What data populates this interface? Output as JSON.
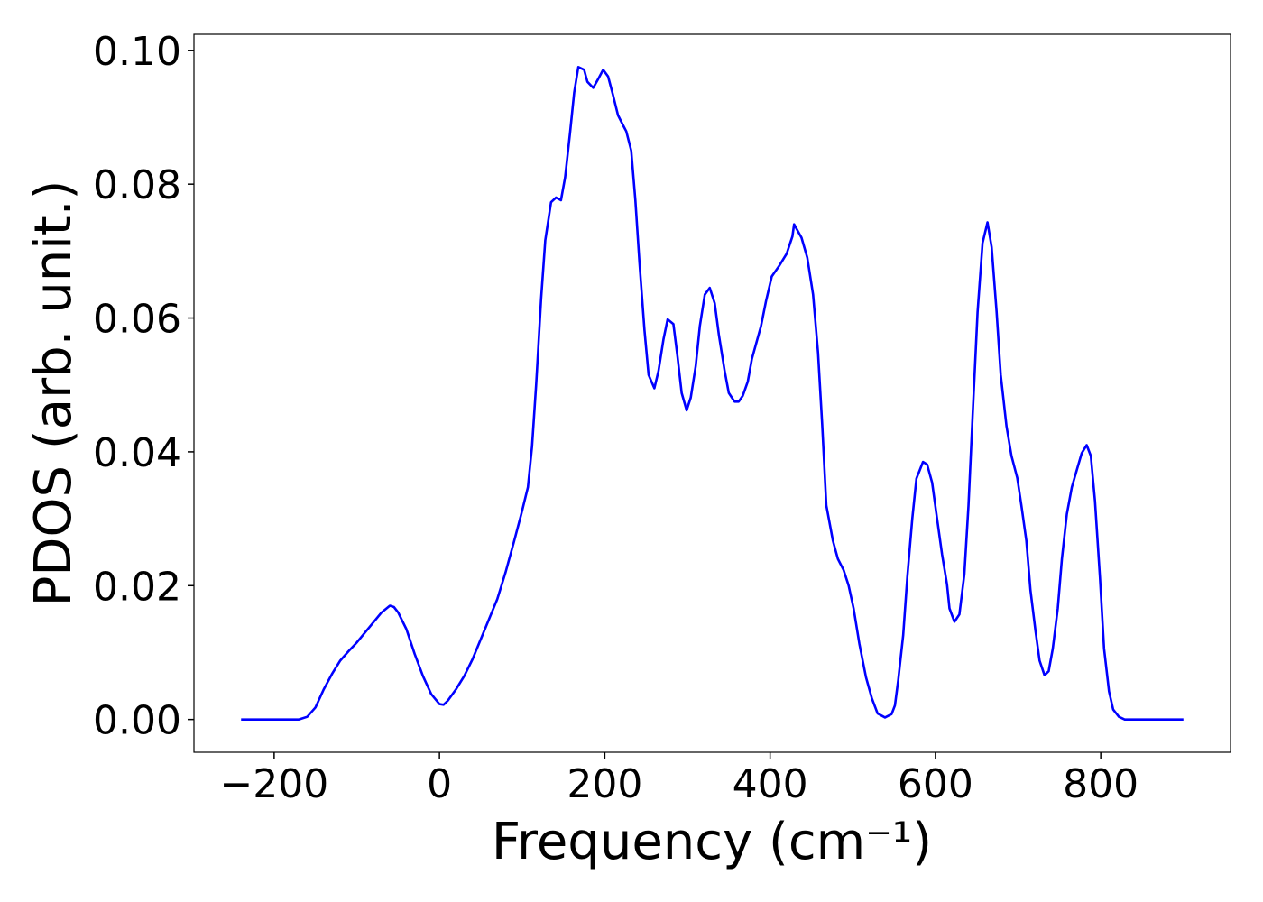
{
  "chart_data": {
    "type": "line",
    "xlabel": "Frequency (cm⁻¹)",
    "ylabel": "PDOS (arb. unit.)",
    "xlim": [
      -297,
      957
    ],
    "ylim": [
      -0.0049,
      0.1024
    ],
    "xticks": [
      {
        "value": -200,
        "label": "−200"
      },
      0,
      200,
      400,
      600,
      800
    ],
    "yticks": [
      {
        "value": 0,
        "label": "0.00"
      },
      {
        "value": 0.02,
        "label": "0.02"
      },
      {
        "value": 0.04,
        "label": "0.04"
      },
      {
        "value": 0.06,
        "label": "0.06"
      },
      {
        "value": 0.08,
        "label": "0.08"
      },
      {
        "value": 0.1,
        "label": "0.10"
      }
    ],
    "grid": false,
    "x": [
      -240,
      -170,
      -160,
      -150,
      -140,
      -130,
      -120,
      -110,
      -100,
      -90,
      -80,
      -70,
      -60,
      -55,
      -50,
      -40,
      -30,
      -20,
      -10,
      0,
      5,
      10,
      20,
      30,
      40,
      50,
      60,
      70,
      80,
      90,
      99,
      107,
      112,
      117,
      123,
      128,
      135,
      141,
      147,
      152,
      158,
      163,
      168,
      175,
      179,
      186,
      192,
      198,
      204,
      210,
      216,
      223,
      226,
      232,
      237,
      242,
      248,
      253,
      260,
      265,
      271,
      276,
      283,
      288,
      293,
      299,
      304,
      310,
      315,
      321,
      327,
      333,
      338,
      345,
      350,
      357,
      362,
      367,
      373,
      378,
      389,
      395,
      402,
      411,
      420,
      427,
      429,
      438,
      445,
      452,
      458,
      463,
      468,
      476,
      482,
      489,
      495,
      501,
      508,
      516,
      523,
      530,
      539,
      547,
      551,
      555,
      561,
      566,
      572,
      577,
      585,
      590,
      596,
      602,
      608,
      614,
      617,
      623,
      629,
      635,
      640,
      645,
      651,
      657,
      663,
      668,
      674,
      679,
      686,
      692,
      699,
      704,
      710,
      715,
      721,
      726,
      732,
      737,
      742,
      748,
      753,
      759,
      765,
      772,
      777,
      783,
      788,
      793,
      799,
      804,
      810,
      815,
      822,
      829,
      900
    ],
    "series": [
      {
        "name": "PDOS",
        "color": "#0000ff",
        "values": [
          0,
          0,
          0.0004,
          0.0018,
          0.0045,
          0.0068,
          0.0088,
          0.0102,
          0.0115,
          0.013,
          0.0145,
          0.016,
          0.017,
          0.0168,
          0.016,
          0.0135,
          0.0098,
          0.0065,
          0.0038,
          0.0023,
          0.0022,
          0.0028,
          0.0045,
          0.0065,
          0.009,
          0.012,
          0.015,
          0.018,
          0.022,
          0.0265,
          0.0307,
          0.0347,
          0.0408,
          0.0501,
          0.0629,
          0.0716,
          0.0773,
          0.078,
          0.0776,
          0.081,
          0.0877,
          0.0937,
          0.0975,
          0.0971,
          0.0953,
          0.0944,
          0.0957,
          0.0971,
          0.0961,
          0.0933,
          0.0903,
          0.0886,
          0.0879,
          0.085,
          0.0776,
          0.0682,
          0.0582,
          0.0515,
          0.0495,
          0.0521,
          0.0568,
          0.0598,
          0.0591,
          0.0542,
          0.0488,
          0.0462,
          0.0481,
          0.0528,
          0.0588,
          0.0635,
          0.0645,
          0.0622,
          0.0575,
          0.0521,
          0.0488,
          0.0475,
          0.0475,
          0.0484,
          0.0505,
          0.0539,
          0.0588,
          0.0625,
          0.0662,
          0.0678,
          0.0696,
          0.0722,
          0.074,
          0.072,
          0.069,
          0.0635,
          0.0548,
          0.0441,
          0.032,
          0.0267,
          0.024,
          0.0223,
          0.02,
          0.0166,
          0.0113,
          0.0063,
          0.0032,
          0.0009,
          0.0003,
          0.0008,
          0.0021,
          0.0059,
          0.0126,
          0.0213,
          0.03,
          0.036,
          0.0385,
          0.0381,
          0.0354,
          0.03,
          0.0247,
          0.0202,
          0.0166,
          0.0146,
          0.0157,
          0.0217,
          0.032,
          0.0454,
          0.0609,
          0.0712,
          0.0743,
          0.0706,
          0.0609,
          0.0515,
          0.0438,
          0.0394,
          0.0361,
          0.032,
          0.0267,
          0.0193,
          0.0133,
          0.0088,
          0.0066,
          0.0072,
          0.0106,
          0.0166,
          0.024,
          0.0307,
          0.0347,
          0.0377,
          0.0398,
          0.041,
          0.0394,
          0.0327,
          0.0213,
          0.0106,
          0.0042,
          0.0015,
          0.0004,
          0,
          0
        ]
      }
    ]
  }
}
